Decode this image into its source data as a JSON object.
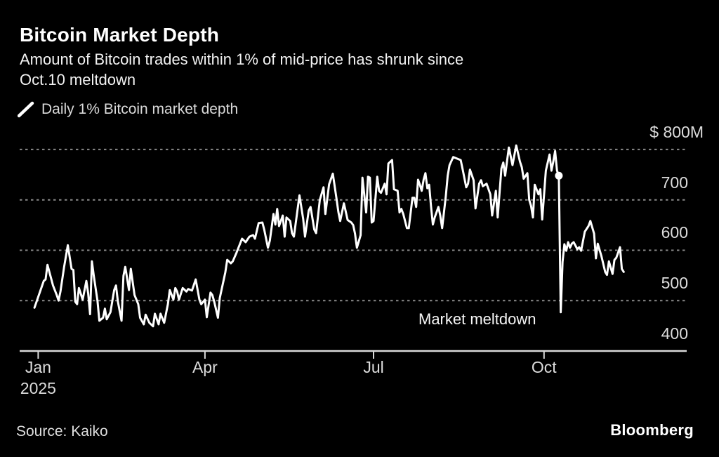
{
  "header": {
    "title": "Bitcoin Market Depth",
    "subtitle_line1": "Amount of Bitcoin trades within 1% of mid-price has shrunk since",
    "subtitle_line2": "Oct.10 meltdown"
  },
  "legend": {
    "label": "Daily 1% Bitcoin market depth"
  },
  "annotation": {
    "label": "Market meltdown"
  },
  "footer": {
    "source": "Source: Kaiko",
    "brand": "Bloomberg"
  },
  "colors": {
    "background": "#000000",
    "title_text": "#ffffff",
    "body_text": "#f2f2f2",
    "axis_label_text": "#dcdcdc",
    "gridline": "#8a8a8a",
    "axis_line": "#d9d9d9",
    "series_line": "#ffffff"
  },
  "chart_data": {
    "type": "line",
    "title": "Bitcoin Market Depth",
    "series_name": "Daily 1% Bitcoin market depth",
    "y_unit": "$M",
    "x_unit": "days since Jan 1, 2025",
    "x_domain": [
      -10,
      350
    ],
    "y_domain": [
      400,
      825
    ],
    "grid": "horizontal-dashed",
    "legend_position": "top-left",
    "x_ticks": [
      {
        "day": 0,
        "label": "Jan",
        "sublabel": "2025"
      },
      {
        "day": 90,
        "label": "Apr",
        "sublabel": ""
      },
      {
        "day": 181,
        "label": "Jul",
        "sublabel": ""
      },
      {
        "day": 273,
        "label": "Oct",
        "sublabel": ""
      }
    ],
    "y_ticks": [
      {
        "value": 800,
        "label": "$ 800M"
      },
      {
        "value": 700,
        "label": "700"
      },
      {
        "value": 600,
        "label": "600"
      },
      {
        "value": 500,
        "label": "500"
      },
      {
        "value": 400,
        "label": "400"
      }
    ],
    "y_gridlines_dashed": [
      500,
      600,
      700,
      800
    ],
    "baseline_value": 400,
    "marker_point": [
      281,
      748
    ],
    "meltdown_low_point": [
      282,
      477
    ],
    "points": [
      [
        -2,
        486
      ],
      [
        3,
        539
      ],
      [
        4,
        542
      ],
      [
        5,
        571
      ],
      [
        8,
        530
      ],
      [
        10,
        511
      ],
      [
        11,
        500
      ],
      [
        12,
        518
      ],
      [
        14,
        567
      ],
      [
        16,
        610
      ],
      [
        18,
        563
      ],
      [
        19,
        561
      ],
      [
        20,
        498
      ],
      [
        21,
        493
      ],
      [
        22,
        525
      ],
      [
        24,
        502
      ],
      [
        26,
        539
      ],
      [
        27,
        514
      ],
      [
        28,
        473
      ],
      [
        29,
        578
      ],
      [
        30,
        549
      ],
      [
        32,
        500
      ],
      [
        33,
        460
      ],
      [
        35,
        466
      ],
      [
        36,
        484
      ],
      [
        37,
        463
      ],
      [
        39,
        477
      ],
      [
        41,
        521
      ],
      [
        42,
        530
      ],
      [
        43,
        498
      ],
      [
        45,
        460
      ],
      [
        46,
        549
      ],
      [
        47,
        567
      ],
      [
        49,
        521
      ],
      [
        50,
        563
      ],
      [
        52,
        511
      ],
      [
        54,
        493
      ],
      [
        55,
        466
      ],
      [
        57,
        453
      ],
      [
        58,
        472
      ],
      [
        60,
        456
      ],
      [
        62,
        449
      ],
      [
        63,
        474
      ],
      [
        65,
        453
      ],
      [
        66,
        474
      ],
      [
        68,
        456
      ],
      [
        70,
        493
      ],
      [
        71,
        521
      ],
      [
        73,
        502
      ],
      [
        74,
        525
      ],
      [
        75,
        518
      ],
      [
        76,
        502
      ],
      [
        78,
        525
      ],
      [
        80,
        518
      ],
      [
        81,
        523
      ],
      [
        83,
        520
      ],
      [
        85,
        542
      ],
      [
        87,
        502
      ],
      [
        88,
        493
      ],
      [
        90,
        502
      ],
      [
        91,
        467
      ],
      [
        93,
        516
      ],
      [
        94,
        511
      ],
      [
        95,
        498
      ],
      [
        97,
        466
      ],
      [
        98,
        505
      ],
      [
        101,
        556
      ],
      [
        102,
        581
      ],
      [
        104,
        574
      ],
      [
        105,
        578
      ],
      [
        107,
        595
      ],
      [
        110,
        623
      ],
      [
        112,
        616
      ],
      [
        114,
        627
      ],
      [
        116,
        630
      ],
      [
        117,
        623
      ],
      [
        119,
        654
      ],
      [
        121,
        655
      ],
      [
        122,
        641
      ],
      [
        124,
        605
      ],
      [
        125,
        619
      ],
      [
        127,
        672
      ],
      [
        128,
        651
      ],
      [
        129,
        682
      ],
      [
        130,
        648
      ],
      [
        132,
        669
      ],
      [
        133,
        627
      ],
      [
        134,
        665
      ],
      [
        136,
        658
      ],
      [
        137,
        634
      ],
      [
        138,
        627
      ],
      [
        141,
        709
      ],
      [
        143,
        662
      ],
      [
        144,
        627
      ],
      [
        146,
        679
      ],
      [
        147,
        686
      ],
      [
        149,
        641
      ],
      [
        150,
        634
      ],
      [
        152,
        700
      ],
      [
        154,
        725
      ],
      [
        155,
        672
      ],
      [
        157,
        731
      ],
      [
        159,
        752
      ],
      [
        161,
        702
      ],
      [
        162,
        676
      ],
      [
        163,
        658
      ],
      [
        165,
        693
      ],
      [
        167,
        660
      ],
      [
        169,
        655
      ],
      [
        170,
        650
      ],
      [
        171,
        633
      ],
      [
        172,
        605
      ],
      [
        174,
        630
      ],
      [
        175,
        744
      ],
      [
        177,
        675
      ],
      [
        178,
        746
      ],
      [
        179,
        744
      ],
      [
        180,
        655
      ],
      [
        181,
        658
      ],
      [
        183,
        746
      ],
      [
        184,
        718
      ],
      [
        185,
        714
      ],
      [
        187,
        732
      ],
      [
        188,
        711
      ],
      [
        189,
        772
      ],
      [
        191,
        779
      ],
      [
        192,
        721
      ],
      [
        194,
        718
      ],
      [
        195,
        675
      ],
      [
        196,
        682
      ],
      [
        197,
        672
      ],
      [
        199,
        644
      ],
      [
        200,
        644
      ],
      [
        202,
        704
      ],
      [
        203,
        704
      ],
      [
        204,
        686
      ],
      [
        205,
        740
      ],
      [
        206,
        730
      ],
      [
        207,
        718
      ],
      [
        208,
        740
      ],
      [
        209,
        753
      ],
      [
        210,
        723
      ],
      [
        211,
        730
      ],
      [
        212,
        688
      ],
      [
        213,
        651
      ],
      [
        214,
        665
      ],
      [
        216,
        686
      ],
      [
        217,
        669
      ],
      [
        218,
        644
      ],
      [
        220,
        707
      ],
      [
        221,
        748
      ],
      [
        222,
        769
      ],
      [
        224,
        785
      ],
      [
        226,
        782
      ],
      [
        228,
        779
      ],
      [
        229,
        762
      ],
      [
        231,
        725
      ],
      [
        232,
        732
      ],
      [
        233,
        760
      ],
      [
        235,
        739
      ],
      [
        236,
        683
      ],
      [
        238,
        732
      ],
      [
        239,
        739
      ],
      [
        240,
        727
      ],
      [
        242,
        732
      ],
      [
        244,
        711
      ],
      [
        245,
        669
      ],
      [
        247,
        718
      ],
      [
        248,
        665
      ],
      [
        250,
        762
      ],
      [
        251,
        774
      ],
      [
        252,
        748
      ],
      [
        254,
        804
      ],
      [
        256,
        769
      ],
      [
        258,
        808
      ],
      [
        260,
        776
      ],
      [
        261,
        765
      ],
      [
        262,
        742
      ],
      [
        264,
        753
      ],
      [
        265,
        700
      ],
      [
        266,
        688
      ],
      [
        267,
        665
      ],
      [
        268,
        730
      ],
      [
        270,
        711
      ],
      [
        271,
        721
      ],
      [
        272,
        661
      ],
      [
        274,
        758
      ],
      [
        276,
        790
      ],
      [
        277,
        758
      ],
      [
        278,
        776
      ],
      [
        279,
        797
      ],
      [
        280,
        758
      ],
      [
        281,
        748
      ],
      [
        282,
        477
      ],
      [
        283,
        577
      ],
      [
        284,
        612
      ],
      [
        285,
        599
      ],
      [
        286,
        616
      ],
      [
        287,
        605
      ],
      [
        288,
        613
      ],
      [
        289,
        616
      ],
      [
        291,
        602
      ],
      [
        292,
        606
      ],
      [
        293,
        599
      ],
      [
        295,
        637
      ],
      [
        297,
        648
      ],
      [
        298,
        658
      ],
      [
        300,
        633
      ],
      [
        301,
        584
      ],
      [
        302,
        613
      ],
      [
        304,
        588
      ],
      [
        306,
        557
      ],
      [
        307,
        551
      ],
      [
        308,
        578
      ],
      [
        310,
        553
      ],
      [
        311,
        581
      ],
      [
        312,
        585
      ],
      [
        314,
        606
      ],
      [
        315,
        563
      ],
      [
        316,
        557
      ]
    ]
  }
}
